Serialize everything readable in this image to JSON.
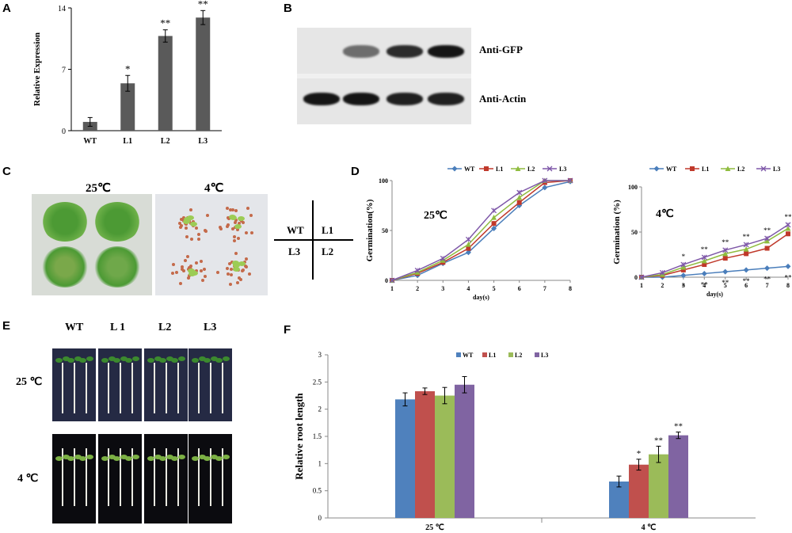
{
  "panels": {
    "A": "A",
    "B": "B",
    "C": "C",
    "D": "D",
    "E": "E",
    "F": "F"
  },
  "blot": {
    "gfp_label": "Anti-GFP",
    "actin_label": "Anti-Actin",
    "gfp_intensity": [
      0,
      0.55,
      0.85,
      0.95
    ],
    "actin_intensity": [
      0.95,
      0.95,
      0.9,
      0.9
    ]
  },
  "plate": {
    "label_25": "25℃",
    "label_4": "4℃",
    "grid": {
      "tl": "WT",
      "tr": "L1",
      "bl": "L3",
      "br": "L2"
    }
  },
  "seedlings": {
    "cols": [
      "WT",
      "L 1",
      "L2",
      "L3"
    ],
    "row_25": "25 ℃",
    "row_4": "4 ℃"
  },
  "chart_data": [
    {
      "id": "A",
      "type": "bar",
      "categories": [
        "WT",
        "L1",
        "L2",
        "L3"
      ],
      "values": [
        1.0,
        5.4,
        10.8,
        12.9
      ],
      "errors": [
        0.5,
        0.9,
        0.7,
        0.8
      ],
      "significance": [
        "",
        "*",
        "**",
        "**"
      ],
      "ylabel": "Relative Expression",
      "ylim": [
        0,
        14
      ],
      "yticks": [
        0,
        7,
        14
      ],
      "color": "#5a5a5a"
    },
    {
      "id": "D1",
      "type": "line",
      "x": [
        1,
        2,
        3,
        4,
        5,
        6,
        7,
        8
      ],
      "xlabel": "day(s)",
      "ylabel": "Germination(%)",
      "ylim": [
        0,
        100
      ],
      "yticks": [
        0,
        50,
        100
      ],
      "annotation": "25℃",
      "legend": "top",
      "series": [
        {
          "name": "WT",
          "color": "#4a7ebb",
          "marker": "diamond",
          "values": [
            0,
            5,
            17,
            28,
            52,
            75,
            93,
            99
          ]
        },
        {
          "name": "L1",
          "color": "#c0392b",
          "marker": "square",
          "values": [
            0,
            7,
            18,
            32,
            57,
            78,
            98,
            100
          ]
        },
        {
          "name": "L2",
          "color": "#8fbc3f",
          "marker": "triangle",
          "values": [
            0,
            8,
            20,
            36,
            63,
            83,
            100,
            100
          ]
        },
        {
          "name": "L3",
          "color": "#7e57a8",
          "marker": "x",
          "values": [
            0,
            10,
            22,
            41,
            70,
            88,
            100,
            100
          ]
        }
      ]
    },
    {
      "id": "D2",
      "type": "line",
      "x": [
        1,
        2,
        3,
        4,
        5,
        6,
        7,
        8
      ],
      "xlabel": "day(s)",
      "ylabel": "Germination (%)",
      "ylim": [
        0,
        100
      ],
      "yticks": [
        0,
        50,
        100
      ],
      "annotation": "4℃",
      "legend": "top",
      "series": [
        {
          "name": "WT",
          "color": "#4a7ebb",
          "marker": "diamond",
          "values": [
            0,
            0,
            2,
            4,
            6,
            8,
            10,
            12
          ]
        },
        {
          "name": "L1",
          "color": "#c0392b",
          "marker": "square",
          "values": [
            0,
            2,
            8,
            14,
            21,
            26,
            32,
            48
          ]
        },
        {
          "name": "L2",
          "color": "#8fbc3f",
          "marker": "triangle",
          "values": [
            0,
            3,
            11,
            18,
            26,
            31,
            40,
            54
          ]
        },
        {
          "name": "L3",
          "color": "#7e57a8",
          "marker": "x",
          "values": [
            0,
            5,
            14,
            22,
            30,
            36,
            43,
            58
          ]
        }
      ],
      "significance_days": [
        3,
        4,
        5,
        6,
        7,
        8
      ]
    },
    {
      "id": "F",
      "type": "bar",
      "categories": [
        "25 ℃",
        "4 ℃"
      ],
      "ylabel": "Relative root length",
      "ylim": [
        0,
        3
      ],
      "yticks": [
        0,
        0.5,
        1,
        1.5,
        2,
        2.5,
        3
      ],
      "legend": "top",
      "series": [
        {
          "name": "WT",
          "color": "#4f81bd",
          "values": [
            2.18,
            0.67
          ],
          "errors": [
            0.12,
            0.1
          ],
          "significance": [
            "",
            ""
          ]
        },
        {
          "name": "L1",
          "color": "#c0504d",
          "values": [
            2.33,
            0.98
          ],
          "errors": [
            0.06,
            0.1
          ],
          "significance": [
            "",
            "*"
          ]
        },
        {
          "name": "L2",
          "color": "#9bbb59",
          "values": [
            2.25,
            1.17
          ],
          "errors": [
            0.15,
            0.15
          ],
          "significance": [
            "",
            "**"
          ]
        },
        {
          "name": "L3",
          "color": "#8064a2",
          "values": [
            2.45,
            1.52
          ],
          "errors": [
            0.15,
            0.06
          ],
          "significance": [
            "",
            "**"
          ]
        }
      ]
    }
  ]
}
